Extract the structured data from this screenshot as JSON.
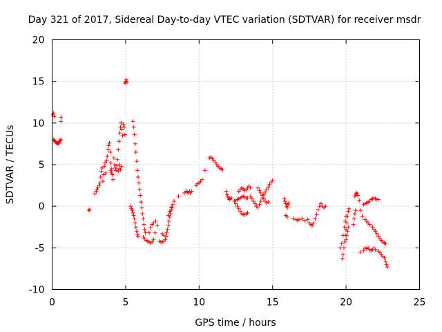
{
  "chart_data": {
    "type": "scatter",
    "title": "Day 321 of 2017, Sidereal Day-to-day VTEC variation (SDTVAR) for receiver msdr",
    "xlabel": "GPS time / hours",
    "ylabel": "SDTVAR / TECUs",
    "xlim": [
      0,
      25
    ],
    "ylim": [
      -10,
      20
    ],
    "xticks": [
      "0",
      "5",
      "10",
      "15",
      "20",
      "25"
    ],
    "yticks": [
      "-10",
      "-5",
      "0",
      "5",
      "10",
      "15",
      "20"
    ],
    "grid": true,
    "marker": "+",
    "color": "#ff0000",
    "series": [
      {
        "name": "SDTVAR",
        "points": [
          [
            0.05,
            11.0
          ],
          [
            0.1,
            11.2
          ],
          [
            0.15,
            10.8
          ],
          [
            0.1,
            8.0
          ],
          [
            0.15,
            7.9
          ],
          [
            0.2,
            7.8
          ],
          [
            0.25,
            7.7
          ],
          [
            0.3,
            7.6
          ],
          [
            0.35,
            7.6
          ],
          [
            0.4,
            7.5
          ],
          [
            0.45,
            7.6
          ],
          [
            0.5,
            7.8
          ],
          [
            0.55,
            7.9
          ],
          [
            0.6,
            8.0
          ],
          [
            0.6,
            10.7
          ],
          [
            0.6,
            10.2
          ],
          [
            2.5,
            -0.5
          ],
          [
            2.55,
            -0.4
          ],
          [
            2.9,
            1.5
          ],
          [
            3.0,
            1.8
          ],
          [
            3.05,
            2.0
          ],
          [
            3.1,
            2.2
          ],
          [
            3.2,
            2.5
          ],
          [
            3.25,
            2.8
          ],
          [
            3.3,
            3.5
          ],
          [
            3.35,
            4.2
          ],
          [
            3.4,
            4.6
          ],
          [
            3.45,
            3.0
          ],
          [
            3.5,
            3.8
          ],
          [
            3.55,
            4.8
          ],
          [
            3.6,
            5.2
          ],
          [
            3.65,
            4.0
          ],
          [
            3.7,
            5.5
          ],
          [
            3.75,
            6.0
          ],
          [
            3.8,
            6.8
          ],
          [
            3.85,
            7.3
          ],
          [
            3.9,
            7.6
          ],
          [
            3.95,
            6.5
          ],
          [
            4.0,
            5.2
          ],
          [
            4.05,
            4.5
          ],
          [
            4.1,
            3.8
          ],
          [
            4.15,
            3.2
          ],
          [
            4.2,
            5.8
          ],
          [
            4.25,
            5.0
          ],
          [
            4.3,
            4.6
          ],
          [
            4.35,
            4.3
          ],
          [
            4.4,
            4.9
          ],
          [
            4.45,
            5.6
          ],
          [
            4.5,
            6.8
          ],
          [
            4.55,
            7.8
          ],
          [
            4.6,
            8.8
          ],
          [
            4.65,
            9.5
          ],
          [
            4.7,
            10.0
          ],
          [
            4.75,
            9.2
          ],
          [
            4.8,
            8.5
          ],
          [
            4.85,
            9.8
          ],
          [
            4.9,
            9.5
          ],
          [
            4.95,
            8.6
          ],
          [
            4.5,
            4.2
          ],
          [
            4.55,
            4.5
          ],
          [
            4.6,
            5.0
          ],
          [
            4.65,
            4.4
          ],
          [
            4.7,
            4.8
          ],
          [
            4.0,
            4.3
          ],
          [
            4.05,
            4.0
          ],
          [
            4.95,
            14.8
          ],
          [
            5.0,
            15.0
          ],
          [
            5.05,
            15.2
          ],
          [
            5.1,
            14.9
          ],
          [
            5.35,
            0.0
          ],
          [
            5.4,
            -0.3
          ],
          [
            5.45,
            -0.5
          ],
          [
            5.5,
            -0.8
          ],
          [
            5.55,
            -1.1
          ],
          [
            5.6,
            -1.5
          ],
          [
            5.65,
            -2.0
          ],
          [
            5.7,
            -2.5
          ],
          [
            5.75,
            -3.0
          ],
          [
            5.8,
            -3.4
          ],
          [
            5.85,
            -3.6
          ],
          [
            5.5,
            10.2
          ],
          [
            5.55,
            9.5
          ],
          [
            5.6,
            8.6
          ],
          [
            5.65,
            7.5
          ],
          [
            5.7,
            6.5
          ],
          [
            5.75,
            5.4
          ],
          [
            5.8,
            4.3
          ],
          [
            5.85,
            3.5
          ],
          [
            5.9,
            2.8
          ],
          [
            5.95,
            2.0
          ],
          [
            6.0,
            1.3
          ],
          [
            6.05,
            0.5
          ],
          [
            6.1,
            -0.2
          ],
          [
            6.15,
            -0.9
          ],
          [
            6.2,
            -1.5
          ],
          [
            6.25,
            -2.2
          ],
          [
            6.3,
            -2.8
          ],
          [
            6.35,
            -3.2
          ],
          [
            6.2,
            -3.7
          ],
          [
            6.3,
            -3.9
          ],
          [
            6.4,
            -4.1
          ],
          [
            6.5,
            -4.2
          ],
          [
            6.6,
            -4.3
          ],
          [
            6.7,
            -4.4
          ],
          [
            6.8,
            -4.3
          ],
          [
            6.9,
            -4.0
          ],
          [
            7.0,
            -3.2
          ],
          [
            6.6,
            -3.2
          ],
          [
            6.7,
            -2.6
          ],
          [
            6.8,
            -2.2
          ],
          [
            6.9,
            -2.0
          ],
          [
            7.05,
            -1.8
          ],
          [
            7.15,
            -2.3
          ],
          [
            7.3,
            -4.2
          ],
          [
            7.4,
            -4.3
          ],
          [
            7.5,
            -4.3
          ],
          [
            7.6,
            -4.2
          ],
          [
            7.7,
            -4.0
          ],
          [
            7.75,
            -3.6
          ],
          [
            7.8,
            -3.2
          ],
          [
            7.85,
            -2.8
          ],
          [
            7.9,
            -2.3
          ],
          [
            7.95,
            -1.8
          ],
          [
            8.0,
            -1.3
          ],
          [
            8.05,
            -0.9
          ],
          [
            8.1,
            -0.5
          ],
          [
            8.15,
            -0.2
          ],
          [
            8.2,
            0.2
          ],
          [
            8.3,
            0.6
          ],
          [
            8.1,
            -0.1
          ],
          [
            8.0,
            -0.6
          ],
          [
            7.9,
            -1.1
          ],
          [
            7.5,
            -3.3
          ],
          [
            7.6,
            -3.5
          ],
          [
            8.6,
            1.2
          ],
          [
            9.0,
            1.6
          ],
          [
            9.1,
            1.8
          ],
          [
            9.2,
            1.7
          ],
          [
            9.3,
            1.6
          ],
          [
            9.35,
            1.8
          ],
          [
            9.4,
            1.6
          ],
          [
            9.5,
            1.8
          ],
          [
            9.8,
            2.5
          ],
          [
            9.9,
            2.7
          ],
          [
            10.0,
            2.8
          ],
          [
            10.1,
            3.0
          ],
          [
            10.2,
            3.2
          ],
          [
            10.4,
            4.3
          ],
          [
            10.7,
            5.8
          ],
          [
            10.8,
            5.9
          ],
          [
            10.9,
            5.7
          ],
          [
            11.0,
            5.5
          ],
          [
            11.1,
            5.3
          ],
          [
            11.2,
            5.0
          ],
          [
            11.3,
            4.8
          ],
          [
            11.4,
            4.6
          ],
          [
            11.5,
            4.5
          ],
          [
            11.6,
            4.4
          ],
          [
            11.85,
            1.8
          ],
          [
            11.9,
            1.4
          ],
          [
            11.95,
            1.2
          ],
          [
            12.0,
            1.0
          ],
          [
            12.05,
            0.8
          ],
          [
            12.1,
            0.9
          ],
          [
            12.2,
            1.0
          ],
          [
            12.4,
            0.6
          ],
          [
            12.5,
            0.3
          ],
          [
            12.6,
            0.0
          ],
          [
            12.7,
            -0.3
          ],
          [
            12.8,
            -0.6
          ],
          [
            12.9,
            -0.9
          ],
          [
            13.0,
            -1.0
          ],
          [
            13.1,
            -1.0
          ],
          [
            13.2,
            -0.9
          ],
          [
            13.3,
            -0.8
          ],
          [
            12.7,
            1.8
          ],
          [
            12.8,
            2.0
          ],
          [
            12.9,
            2.2
          ],
          [
            13.0,
            2.1
          ],
          [
            13.1,
            1.9
          ],
          [
            13.2,
            2.0
          ],
          [
            13.3,
            2.2
          ],
          [
            13.4,
            2.4
          ],
          [
            13.5,
            2.2
          ],
          [
            12.5,
            0.7
          ],
          [
            12.6,
            0.8
          ],
          [
            12.7,
            0.9
          ],
          [
            12.8,
            1.0
          ],
          [
            12.9,
            1.1
          ],
          [
            13.0,
            1.2
          ],
          [
            13.1,
            1.1
          ],
          [
            13.2,
            1.0
          ],
          [
            13.3,
            1.0
          ],
          [
            13.5,
            1.2
          ],
          [
            13.6,
            0.9
          ],
          [
            13.7,
            0.6
          ],
          [
            13.8,
            0.3
          ],
          [
            13.9,
            0.0
          ],
          [
            14.0,
            -0.2
          ],
          [
            14.1,
            0.2
          ],
          [
            14.2,
            0.6
          ],
          [
            14.3,
            1.0
          ],
          [
            14.4,
            1.4
          ],
          [
            14.5,
            1.7
          ],
          [
            14.6,
            2.0
          ],
          [
            14.7,
            2.3
          ],
          [
            14.8,
            2.6
          ],
          [
            14.9,
            2.9
          ],
          [
            15.0,
            3.1
          ],
          [
            14.0,
            2.2
          ],
          [
            14.1,
            1.9
          ],
          [
            14.2,
            1.6
          ],
          [
            14.3,
            1.3
          ],
          [
            14.4,
            0.9
          ],
          [
            14.5,
            0.6
          ],
          [
            14.6,
            0.4
          ],
          [
            14.7,
            0.5
          ],
          [
            15.8,
            0.9
          ],
          [
            15.85,
            0.6
          ],
          [
            15.9,
            0.3
          ],
          [
            15.95,
            0.0
          ],
          [
            16.0,
            -0.2
          ],
          [
            16.05,
            0.2
          ],
          [
            16.1,
            0.4
          ],
          [
            15.9,
            -1.1
          ],
          [
            16.0,
            -1.3
          ],
          [
            16.4,
            -1.5
          ],
          [
            16.6,
            -1.6
          ],
          [
            16.7,
            -1.7
          ],
          [
            16.8,
            -1.6
          ],
          [
            17.0,
            -1.5
          ],
          [
            17.2,
            -1.7
          ],
          [
            17.4,
            -1.6
          ],
          [
            17.5,
            -2.0
          ],
          [
            17.6,
            -2.2
          ],
          [
            17.7,
            -2.3
          ],
          [
            17.8,
            -2.0
          ],
          [
            17.9,
            -1.5
          ],
          [
            18.0,
            -1.0
          ],
          [
            18.1,
            -0.4
          ],
          [
            18.2,
            0.0
          ],
          [
            18.3,
            0.3
          ],
          [
            18.4,
            0.0
          ],
          [
            18.5,
            -0.2
          ],
          [
            18.6,
            0.0
          ],
          [
            19.6,
            -5.0
          ],
          [
            19.7,
            -4.5
          ],
          [
            19.8,
            -3.5
          ],
          [
            19.9,
            -2.5
          ],
          [
            19.95,
            -1.8
          ],
          [
            20.0,
            -1.2
          ],
          [
            19.75,
            -6.3
          ],
          [
            19.8,
            -5.8
          ],
          [
            19.85,
            -5.0
          ],
          [
            19.9,
            -4.3
          ],
          [
            19.95,
            -3.5
          ],
          [
            20.0,
            -2.8
          ],
          [
            20.05,
            -2.0
          ],
          [
            20.1,
            -1.2
          ],
          [
            20.15,
            -0.6
          ],
          [
            20.2,
            -0.3
          ],
          [
            20.0,
            -4.0
          ],
          [
            20.05,
            -3.5
          ],
          [
            20.1,
            -3.0
          ],
          [
            20.15,
            -2.5
          ],
          [
            20.5,
            -2.2
          ],
          [
            20.55,
            -1.5
          ],
          [
            20.6,
            -0.9
          ],
          [
            20.65,
            -0.5
          ],
          [
            20.6,
            1.2
          ],
          [
            20.65,
            1.4
          ],
          [
            20.7,
            1.6
          ],
          [
            20.75,
            1.5
          ],
          [
            20.8,
            1.3
          ],
          [
            20.9,
            0.7
          ],
          [
            21.0,
            -0.5
          ],
          [
            21.1,
            -1.2
          ],
          [
            21.0,
            -5.5
          ],
          [
            21.2,
            -5.3
          ],
          [
            21.2,
            0.2
          ],
          [
            21.3,
            0.3
          ],
          [
            21.4,
            0.4
          ],
          [
            21.5,
            0.5
          ],
          [
            21.6,
            0.6
          ],
          [
            21.7,
            0.8
          ],
          [
            21.8,
            0.9
          ],
          [
            21.9,
            1.0
          ],
          [
            22.0,
            0.9
          ],
          [
            22.1,
            0.8
          ],
          [
            22.2,
            0.8
          ],
          [
            21.3,
            -1.6
          ],
          [
            21.4,
            -1.8
          ],
          [
            21.5,
            -2.0
          ],
          [
            21.6,
            -2.2
          ],
          [
            21.3,
            -5.0
          ],
          [
            21.4,
            -5.1
          ],
          [
            21.5,
            -5.0
          ],
          [
            21.6,
            -5.2
          ],
          [
            21.7,
            -5.3
          ],
          [
            21.8,
            -5.2
          ],
          [
            21.9,
            -5.0
          ],
          [
            22.0,
            -5.2
          ],
          [
            21.8,
            -2.5
          ],
          [
            21.9,
            -2.8
          ],
          [
            22.0,
            -3.0
          ],
          [
            22.1,
            -3.3
          ],
          [
            22.2,
            -3.6
          ],
          [
            22.3,
            -3.9
          ],
          [
            22.4,
            -4.1
          ],
          [
            22.5,
            -4.3
          ],
          [
            22.6,
            -4.4
          ],
          [
            22.7,
            -4.5
          ],
          [
            22.2,
            -5.4
          ],
          [
            22.3,
            -5.6
          ],
          [
            22.4,
            -5.8
          ],
          [
            22.5,
            -6.0
          ],
          [
            22.6,
            -6.2
          ],
          [
            22.7,
            -6.6
          ],
          [
            22.75,
            -7.0
          ],
          [
            22.8,
            -7.3
          ]
        ]
      }
    ]
  }
}
